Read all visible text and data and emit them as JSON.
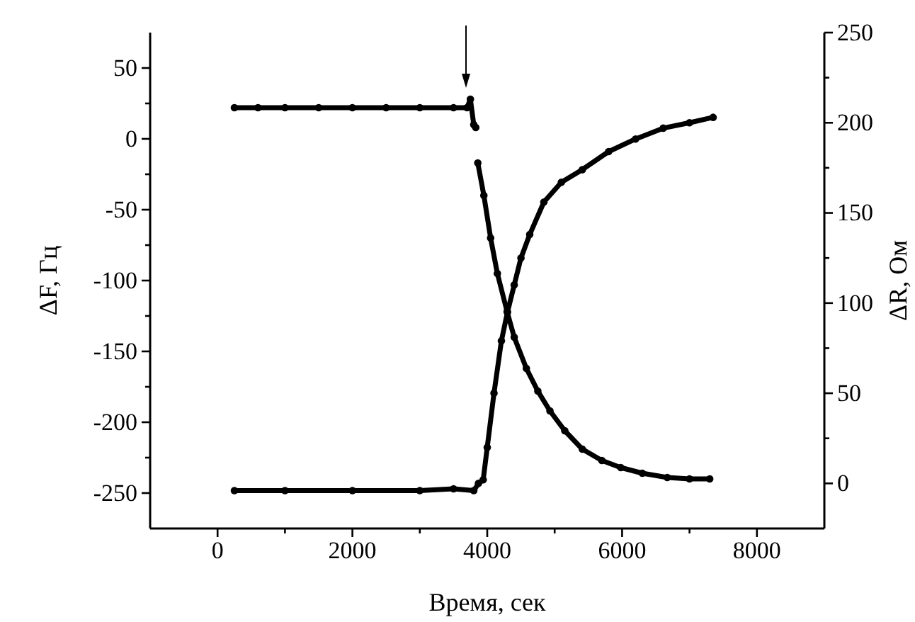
{
  "chart_data": {
    "type": "line",
    "xlabel": "Время, сек",
    "ylabel": "ΔF, Гц",
    "y2label": "ΔR, Ом",
    "marker": "circle",
    "grid": false,
    "xlim": [
      -1000,
      9000
    ],
    "xticks": [
      0,
      {
        "value": 1000,
        "label": null
      },
      2000,
      {
        "value": 3000,
        "label": null
      },
      4000,
      {
        "value": 5000,
        "label": null
      },
      6000,
      {
        "value": 7000,
        "label": null
      },
      8000
    ],
    "ylim": [
      -275,
      75
    ],
    "yticks": [
      -250,
      {
        "value": -225,
        "label": null
      },
      -200,
      {
        "value": -175,
        "label": null
      },
      -150,
      {
        "value": -125,
        "label": null
      },
      -100,
      {
        "value": -75,
        "label": null
      },
      -50,
      {
        "value": -25,
        "label": null
      },
      0,
      {
        "value": 25,
        "label": null
      },
      50
    ],
    "y2lim": [
      -25,
      250
    ],
    "y2ticks": [
      0,
      {
        "value": 25,
        "label": null
      },
      50,
      {
        "value": 75,
        "label": null
      },
      100,
      {
        "value": 125,
        "label": null
      },
      150,
      {
        "value": 175,
        "label": null
      },
      200,
      {
        "value": 225,
        "label": null
      },
      250
    ],
    "series": [
      {
        "color": "#000000",
        "x": [
          250,
          600,
          1000,
          1500,
          2000,
          2500,
          3000,
          3500,
          3700,
          3750,
          3800,
          3830,
          3845,
          3860,
          3950,
          4050,
          4150,
          4295,
          4400,
          4580,
          4750,
          4930,
          5150,
          5410,
          5700,
          5980,
          6300,
          6670,
          7000,
          7300
        ],
        "values": [
          22,
          22,
          22,
          22,
          22,
          22,
          22,
          22,
          22,
          28,
          10,
          8,
          null,
          -17,
          -40,
          -70,
          -95,
          -122,
          -140,
          -162,
          -178,
          -192,
          -206,
          -219,
          -227,
          -232,
          -236,
          -239,
          -240,
          -240
        ]
      },
      {
        "color": "#000000",
        "axis": "y2",
        "x": [
          250,
          1000,
          2000,
          3000,
          3500,
          3800,
          3870,
          3940,
          4000,
          4100,
          4210,
          4300,
          4400,
          4500,
          4630,
          4840,
          5100,
          5410,
          5800,
          6200,
          6610,
          7000,
          7350
        ],
        "values": [
          -4,
          -4,
          -4,
          -4,
          -3,
          -4,
          0,
          2,
          20,
          50,
          79,
          95,
          110,
          125,
          138,
          156,
          167,
          174,
          184,
          191,
          197,
          200,
          203
        ]
      }
    ]
  }
}
